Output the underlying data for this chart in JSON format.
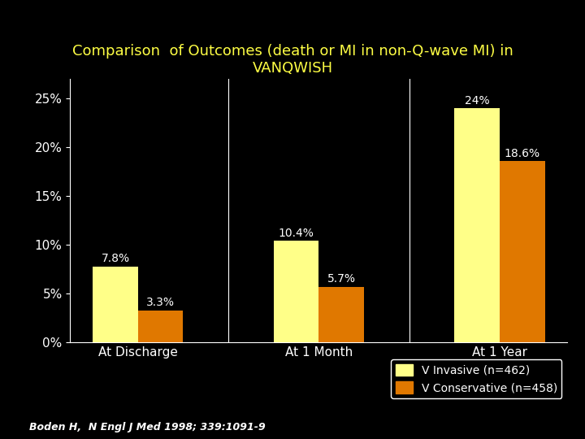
{
  "title_line1": "Comparison  of Outcomes (death or MI in non-Q-wave MI) in",
  "title_line2": "VANQWISH",
  "categories": [
    "At Discharge",
    "At 1 Month",
    "At 1 Year"
  ],
  "invasive_values": [
    7.8,
    10.4,
    24.0
  ],
  "conservative_values": [
    3.3,
    5.7,
    18.6
  ],
  "invasive_labels": [
    "7.8%",
    "10.4%",
    "24%"
  ],
  "conservative_labels": [
    "3.3%",
    "5.7%",
    "18.6%"
  ],
  "bar_color_invasive": "#FFFF88",
  "bar_color_conservative": "#E07800",
  "background_color": "#000000",
  "title_color": "#FFFF44",
  "tick_label_color": "#FFFFFF",
  "bar_label_color": "#FFFFFF",
  "cat_label_color": "#FFFFFF",
  "yticks": [
    0,
    5,
    10,
    15,
    20,
    25
  ],
  "ytick_labels": [
    "0%",
    "5%",
    "10%",
    "15%",
    "20%",
    "25%"
  ],
  "ylim": [
    0,
    27
  ],
  "legend_invasive": "V Invasive (n=462)",
  "legend_conservative": "V Conservative (n=458)",
  "footnote": "Boden H,  N Engl J Med 1998; 339:1091-9",
  "title_fontsize": 13,
  "bar_label_fontsize": 10,
  "tick_fontsize": 11,
  "cat_label_fontsize": 11,
  "legend_fontsize": 10,
  "footnote_fontsize": 9,
  "bar_width": 0.25
}
